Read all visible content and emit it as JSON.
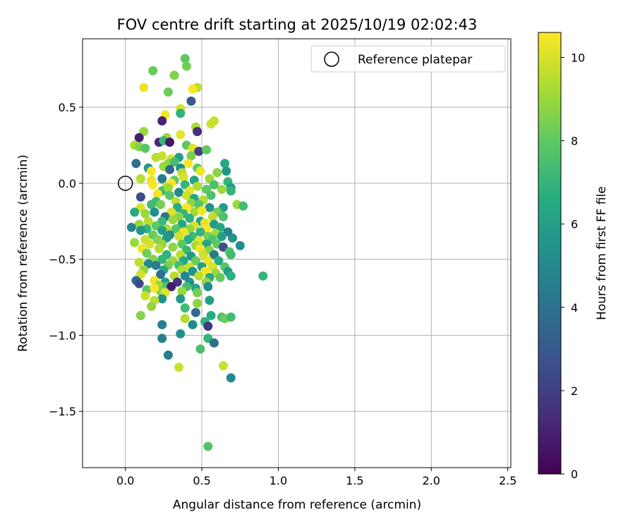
{
  "chart_data": {
    "type": "scatter",
    "title": "FOV centre drift starting at 2025/10/19 02:02:43",
    "xlabel": "Angular distance from reference (arcmin)",
    "ylabel": "Rotation from reference (arcmin)",
    "xlim": [
      -0.28,
      2.52
    ],
    "ylim": [
      -1.87,
      0.95
    ],
    "xticks": [
      0.0,
      0.5,
      1.0,
      1.5,
      2.0,
      2.5
    ],
    "xtick_labels": [
      "0.0",
      "0.5",
      "1.0",
      "1.5",
      "2.0",
      "2.5"
    ],
    "yticks": [
      0.5,
      0.0,
      -0.5,
      -1.0,
      -1.5
    ],
    "ytick_labels": [
      "0.5",
      "0.0",
      "−0.5",
      "−1.0",
      "−1.5"
    ],
    "grid": true,
    "legend": {
      "position": "top-right",
      "entries": [
        "Reference platepar"
      ]
    },
    "reference_point": {
      "x": 0.0,
      "y": 0.0,
      "label": "Reference platepar"
    },
    "colorbar": {
      "label": "Hours from first FF file",
      "colormap": "viridis",
      "range": [
        0,
        10.6
      ],
      "ticks": [
        0,
        2,
        4,
        6,
        8,
        10
      ],
      "tick_labels": [
        "0",
        "2",
        "4",
        "6",
        "8",
        "10"
      ]
    },
    "points": [
      [
        0.39,
        0.82,
        8.0
      ],
      [
        0.4,
        0.77,
        8.3
      ],
      [
        0.18,
        0.74,
        8.1
      ],
      [
        0.32,
        0.71,
        8.6
      ],
      [
        0.12,
        0.63,
        10.3
      ],
      [
        0.47,
        0.63,
        9.5
      ],
      [
        0.44,
        0.62,
        10.5
      ],
      [
        0.28,
        0.6,
        8.2
      ],
      [
        0.43,
        0.54,
        3.0
      ],
      [
        0.36,
        0.49,
        10.0
      ],
      [
        0.26,
        0.45,
        10.4
      ],
      [
        0.36,
        0.46,
        6.8
      ],
      [
        0.24,
        0.41,
        1.0
      ],
      [
        0.56,
        0.39,
        9.8
      ],
      [
        0.58,
        0.41,
        9.7
      ],
      [
        0.46,
        0.37,
        9.3
      ],
      [
        0.47,
        0.34,
        1.5
      ],
      [
        0.12,
        0.34,
        9.0
      ],
      [
        0.09,
        0.3,
        1.0
      ],
      [
        0.36,
        0.32,
        10.2
      ],
      [
        0.27,
        0.3,
        9.1
      ],
      [
        0.22,
        0.27,
        1.2
      ],
      [
        0.25,
        0.28,
        7.0
      ],
      [
        0.29,
        0.27,
        0.7
      ],
      [
        0.06,
        0.25,
        9.3
      ],
      [
        0.09,
        0.24,
        8.6
      ],
      [
        0.4,
        0.25,
        8.0
      ],
      [
        0.13,
        0.23,
        7.8
      ],
      [
        0.44,
        0.23,
        10.1
      ],
      [
        0.48,
        0.21,
        2.0
      ],
      [
        0.43,
        0.18,
        8.5
      ],
      [
        0.53,
        0.22,
        8.0
      ],
      [
        0.2,
        0.17,
        9.5
      ],
      [
        0.24,
        0.18,
        9.7
      ],
      [
        0.3,
        0.16,
        10.0
      ],
      [
        0.35,
        0.17,
        6.0
      ],
      [
        0.07,
        0.13,
        4.0
      ],
      [
        0.28,
        0.13,
        8.8
      ],
      [
        0.32,
        0.14,
        7.5
      ],
      [
        0.41,
        0.13,
        10.5
      ],
      [
        0.65,
        0.13,
        6.5
      ],
      [
        0.15,
        0.1,
        5.6
      ],
      [
        0.25,
        0.11,
        9.0
      ],
      [
        0.36,
        0.1,
        5.3
      ],
      [
        0.47,
        0.1,
        8.0
      ],
      [
        0.17,
        0.08,
        10.5
      ],
      [
        0.29,
        0.09,
        3.5
      ],
      [
        0.37,
        0.07,
        9.5
      ],
      [
        0.49,
        0.08,
        10.3
      ],
      [
        0.6,
        0.07,
        8.7
      ],
      [
        0.66,
        0.08,
        5.5
      ],
      [
        0.1,
        0.03,
        9.5
      ],
      [
        0.17,
        0.02,
        10.3
      ],
      [
        0.24,
        0.03,
        4.5
      ],
      [
        0.32,
        0.02,
        8.0
      ],
      [
        0.38,
        0.04,
        10.0
      ],
      [
        0.45,
        0.02,
        6.2
      ],
      [
        0.55,
        0.03,
        9.0
      ],
      [
        0.67,
        0.01,
        7.0
      ],
      [
        0.18,
        -0.01,
        10.5
      ],
      [
        0.27,
        -0.02,
        9.8
      ],
      [
        0.3,
        0.0,
        10.6
      ],
      [
        0.39,
        -0.01,
        7.0
      ],
      [
        0.47,
        -0.02,
        9.3
      ],
      [
        0.58,
        -0.01,
        7.5
      ],
      [
        0.69,
        -0.03,
        5.7
      ],
      [
        0.24,
        -0.05,
        7.4
      ],
      [
        0.28,
        -0.03,
        9.0
      ],
      [
        0.35,
        -0.06,
        5.0
      ],
      [
        0.42,
        -0.05,
        10.2
      ],
      [
        0.53,
        -0.04,
        8.0
      ],
      [
        0.63,
        -0.04,
        9.0
      ],
      [
        0.69,
        -0.05,
        7.0
      ],
      [
        0.1,
        -0.09,
        2.4
      ],
      [
        0.21,
        -0.07,
        10.5
      ],
      [
        0.29,
        -0.08,
        7.8
      ],
      [
        0.4,
        -0.08,
        9.8
      ],
      [
        0.45,
        -0.1,
        6.4
      ],
      [
        0.56,
        -0.08,
        7.6
      ],
      [
        0.2,
        -0.12,
        7.1
      ],
      [
        0.33,
        -0.12,
        9.6
      ],
      [
        0.43,
        -0.13,
        8.8
      ],
      [
        0.51,
        -0.11,
        9.4
      ],
      [
        0.73,
        -0.14,
        9.0
      ],
      [
        0.77,
        -0.15,
        7.3
      ],
      [
        0.1,
        -0.16,
        10.0
      ],
      [
        0.17,
        -0.14,
        7.3
      ],
      [
        0.23,
        -0.14,
        8.4
      ],
      [
        0.34,
        -0.16,
        6.6
      ],
      [
        0.4,
        -0.16,
        10.5
      ],
      [
        0.48,
        -0.14,
        7.8
      ],
      [
        0.55,
        -0.16,
        5.4
      ],
      [
        0.64,
        -0.16,
        6.0
      ],
      [
        0.06,
        -0.19,
        6.5
      ],
      [
        0.13,
        -0.2,
        9.0
      ],
      [
        0.19,
        -0.19,
        5.3
      ],
      [
        0.3,
        -0.19,
        10.1
      ],
      [
        0.38,
        -0.2,
        7.0
      ],
      [
        0.45,
        -0.19,
        9.2
      ],
      [
        0.5,
        -0.18,
        10.4
      ],
      [
        0.6,
        -0.19,
        8.3
      ],
      [
        0.26,
        -0.22,
        4.2
      ],
      [
        0.35,
        -0.22,
        8.7
      ],
      [
        0.42,
        -0.23,
        6.8
      ],
      [
        0.57,
        -0.22,
        9.6
      ],
      [
        0.64,
        -0.22,
        7.6
      ],
      [
        0.15,
        -0.25,
        9.5
      ],
      [
        0.24,
        -0.25,
        7.2
      ],
      [
        0.31,
        -0.24,
        9.0
      ],
      [
        0.49,
        -0.25,
        6.1
      ],
      [
        0.52,
        -0.26,
        10.3
      ],
      [
        0.09,
        -0.27,
        9.0
      ],
      [
        0.2,
        -0.28,
        8.0
      ],
      [
        0.37,
        -0.27,
        6.4
      ],
      [
        0.45,
        -0.28,
        10.0
      ],
      [
        0.58,
        -0.27,
        5.8
      ],
      [
        0.04,
        -0.29,
        5.0
      ],
      [
        0.14,
        -0.3,
        7.0
      ],
      [
        0.27,
        -0.3,
        9.3
      ],
      [
        0.33,
        -0.3,
        7.8
      ],
      [
        0.42,
        -0.3,
        8.8
      ],
      [
        0.53,
        -0.3,
        10.6
      ],
      [
        0.62,
        -0.29,
        6.3
      ],
      [
        0.1,
        -0.31,
        5.5
      ],
      [
        0.24,
        -0.31,
        6.0
      ],
      [
        0.38,
        -0.32,
        10.4
      ],
      [
        0.49,
        -0.32,
        6.9
      ],
      [
        0.59,
        -0.33,
        9.1
      ],
      [
        0.67,
        -0.32,
        4.8
      ],
      [
        0.18,
        -0.34,
        8.1
      ],
      [
        0.29,
        -0.34,
        5.2
      ],
      [
        0.35,
        -0.35,
        9.9
      ],
      [
        0.44,
        -0.35,
        7.2
      ],
      [
        0.54,
        -0.35,
        8.4
      ],
      [
        0.63,
        -0.35,
        6.0
      ],
      [
        0.13,
        -0.37,
        9.7
      ],
      [
        0.21,
        -0.37,
        8.6
      ],
      [
        0.27,
        -0.36,
        5.7
      ],
      [
        0.41,
        -0.37,
        6.7
      ],
      [
        0.48,
        -0.38,
        10.2
      ],
      [
        0.57,
        -0.37,
        7.6
      ],
      [
        0.7,
        -0.36,
        5.4
      ],
      [
        0.16,
        -0.4,
        10.0
      ],
      [
        0.24,
        -0.4,
        8.9
      ],
      [
        0.37,
        -0.4,
        7.9
      ],
      [
        0.46,
        -0.41,
        9.2
      ],
      [
        0.53,
        -0.4,
        6.2
      ],
      [
        0.6,
        -0.4,
        8.0
      ],
      [
        0.75,
        -0.41,
        5.2
      ],
      [
        0.06,
        -0.39,
        9.0
      ],
      [
        0.11,
        -0.43,
        10.3
      ],
      [
        0.22,
        -0.43,
        9.4
      ],
      [
        0.31,
        -0.42,
        8.8
      ],
      [
        0.4,
        -0.44,
        7.1
      ],
      [
        0.49,
        -0.43,
        10.4
      ],
      [
        0.55,
        -0.44,
        8.7
      ],
      [
        0.64,
        -0.42,
        2.5
      ],
      [
        0.68,
        -0.45,
        7.7
      ],
      [
        0.14,
        -0.46,
        8.3
      ],
      [
        0.27,
        -0.47,
        6.8
      ],
      [
        0.36,
        -0.47,
        9.5
      ],
      [
        0.43,
        -0.48,
        5.6
      ],
      [
        0.51,
        -0.47,
        9.8
      ],
      [
        0.58,
        -0.47,
        4.3
      ],
      [
        0.69,
        -0.47,
        7.3
      ],
      [
        0.18,
        -0.5,
        8.6
      ],
      [
        0.24,
        -0.5,
        7.0
      ],
      [
        0.31,
        -0.51,
        9.0
      ],
      [
        0.38,
        -0.51,
        6.3
      ],
      [
        0.46,
        -0.51,
        8.2
      ],
      [
        0.54,
        -0.51,
        10.3
      ],
      [
        0.61,
        -0.51,
        6.6
      ],
      [
        0.09,
        -0.52,
        9.6
      ],
      [
        0.15,
        -0.53,
        5.0
      ],
      [
        0.2,
        -0.54,
        4.5
      ],
      [
        0.28,
        -0.54,
        8.4
      ],
      [
        0.35,
        -0.54,
        7.4
      ],
      [
        0.42,
        -0.55,
        9.7
      ],
      [
        0.5,
        -0.55,
        6.0
      ],
      [
        0.57,
        -0.55,
        10.0
      ],
      [
        0.65,
        -0.55,
        7.8
      ],
      [
        0.12,
        -0.57,
        8.9
      ],
      [
        0.25,
        -0.57,
        6.5
      ],
      [
        0.37,
        -0.57,
        9.3
      ],
      [
        0.44,
        -0.58,
        5.5
      ],
      [
        0.52,
        -0.58,
        10.5
      ],
      [
        0.59,
        -0.59,
        9.0
      ],
      [
        0.67,
        -0.58,
        5.9
      ],
      [
        0.1,
        -0.6,
        9.9
      ],
      [
        0.23,
        -0.6,
        3.8
      ],
      [
        0.32,
        -0.61,
        9.4
      ],
      [
        0.39,
        -0.61,
        5.0
      ],
      [
        0.48,
        -0.61,
        9.5
      ],
      [
        0.55,
        -0.62,
        6.4
      ],
      [
        0.62,
        -0.62,
        8.1
      ],
      [
        0.69,
        -0.61,
        6.7
      ],
      [
        0.07,
        -0.64,
        3.8
      ],
      [
        0.19,
        -0.64,
        10.4
      ],
      [
        0.26,
        -0.65,
        6.0
      ],
      [
        0.34,
        -0.65,
        1.6
      ],
      [
        0.42,
        -0.65,
        5.3
      ],
      [
        0.53,
        -0.65,
        8.9
      ],
      [
        0.09,
        -0.66,
        2.4
      ],
      [
        0.22,
        -0.67,
        9.0
      ],
      [
        0.27,
        -0.68,
        7.7
      ],
      [
        0.3,
        -0.68,
        0.8
      ],
      [
        0.4,
        -0.68,
        7.4
      ],
      [
        0.46,
        -0.69,
        6.2
      ],
      [
        0.54,
        -0.68,
        5.1
      ],
      [
        0.14,
        -0.7,
        8.0
      ],
      [
        0.23,
        -0.71,
        8.6
      ],
      [
        0.19,
        -0.69,
        10.5
      ],
      [
        0.26,
        -0.72,
        10.2
      ],
      [
        0.37,
        -0.71,
        9.0
      ],
      [
        0.47,
        -0.72,
        8.4
      ],
      [
        0.13,
        -0.74,
        9.8
      ],
      [
        0.24,
        -0.76,
        5.3
      ],
      [
        0.19,
        -0.77,
        9.6
      ],
      [
        0.36,
        -0.76,
        5.6
      ],
      [
        0.55,
        -0.77,
        6.0
      ],
      [
        0.47,
        -0.79,
        8.8
      ],
      [
        0.17,
        -0.81,
        8.9
      ],
      [
        0.39,
        -0.82,
        7.3
      ],
      [
        0.46,
        -0.85,
        3.7
      ],
      [
        0.1,
        -0.87,
        8.6
      ],
      [
        0.56,
        -0.87,
        6.6
      ],
      [
        0.63,
        -0.88,
        7.6
      ],
      [
        0.65,
        -0.89,
        8.2
      ],
      [
        0.69,
        -0.88,
        7.3
      ],
      [
        0.39,
        -0.89,
        9.4
      ],
      [
        0.52,
        -0.91,
        6.9
      ],
      [
        0.24,
        -0.93,
        4.5
      ],
      [
        0.44,
        -0.93,
        5.0
      ],
      [
        0.54,
        -0.94,
        1.8
      ],
      [
        0.36,
        -0.99,
        5.3
      ],
      [
        0.54,
        -1.02,
        7.0
      ],
      [
        0.24,
        -1.02,
        4.6
      ],
      [
        0.58,
        -1.05,
        4.0
      ],
      [
        0.49,
        -1.09,
        7.5
      ],
      [
        0.28,
        -1.13,
        4.5
      ],
      [
        0.64,
        -1.2,
        9.8
      ],
      [
        0.35,
        -1.21,
        9.8
      ],
      [
        0.69,
        -1.28,
        5.0
      ],
      [
        0.54,
        -1.73,
        7.7
      ],
      [
        0.9,
        -0.61,
        7.0
      ]
    ]
  }
}
